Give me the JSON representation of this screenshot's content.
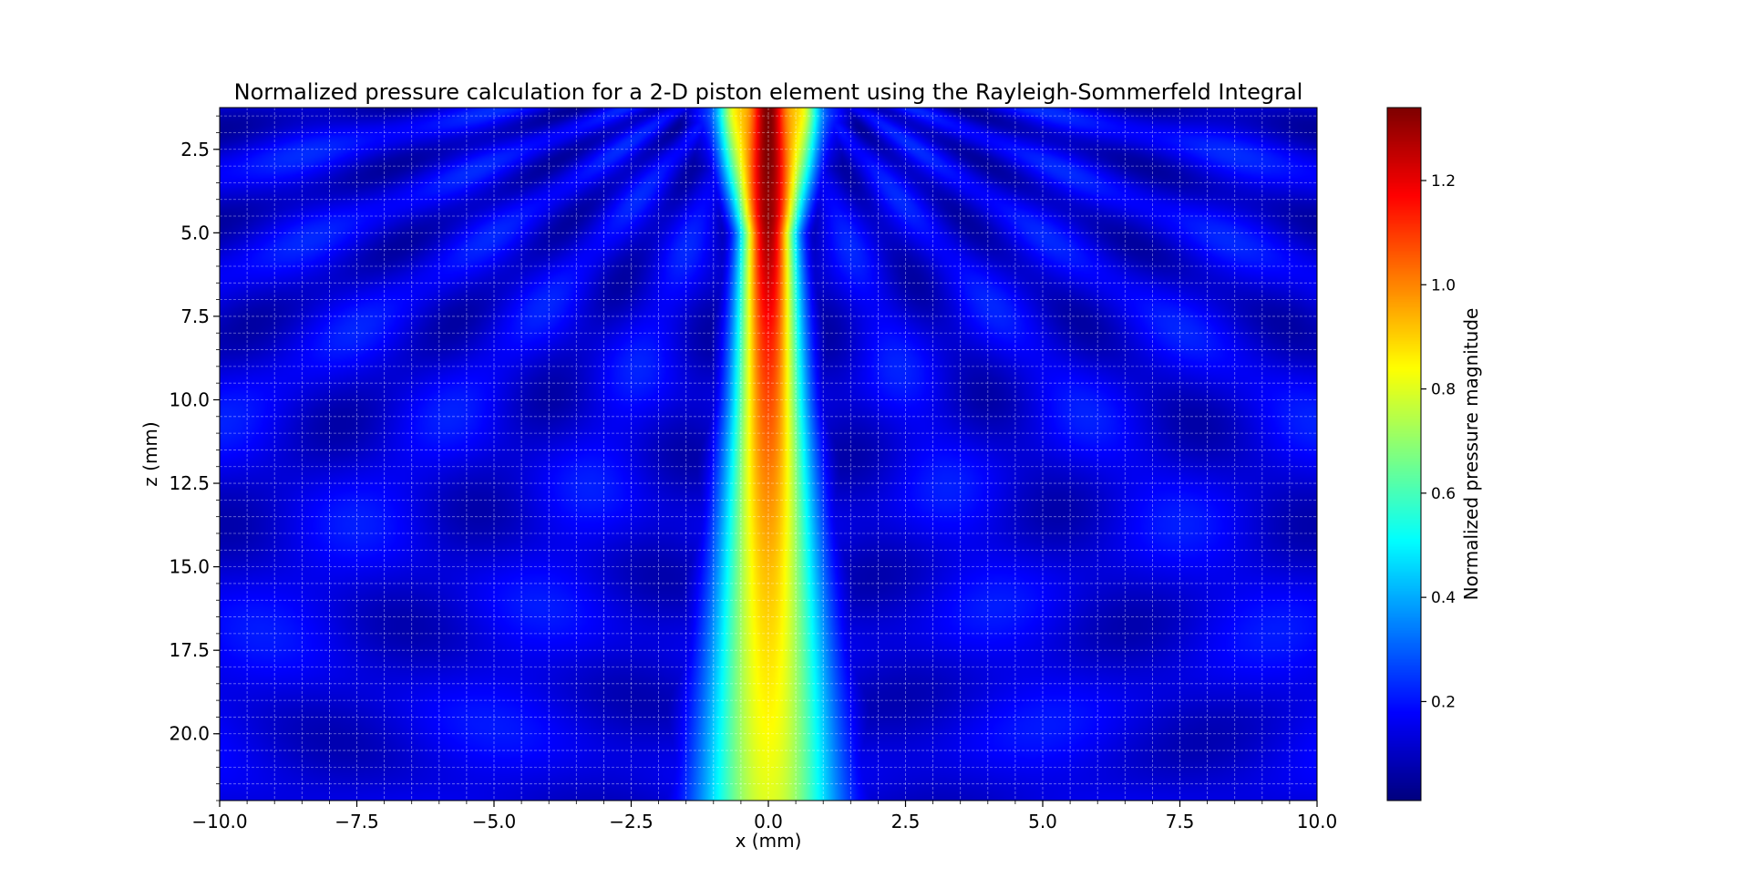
{
  "chart_data": {
    "type": "heatmap",
    "title": "Normalized pressure calculation for a 2-D piston element using the Rayleigh-Sommerfeld Integral",
    "xlabel": "x (mm)",
    "ylabel": "z (mm)",
    "xlim": [
      -10,
      10
    ],
    "ylim": [
      22,
      1.25
    ],
    "y_inverted": true,
    "x_ticks": [
      -10,
      -7.5,
      -5,
      -2.5,
      0,
      2.5,
      5,
      7.5,
      10
    ],
    "x_tick_labels": [
      "−10.0",
      "−7.5",
      "−5.0",
      "−2.5",
      "0.0",
      "2.5",
      "5.0",
      "7.5",
      "10.0"
    ],
    "y_ticks": [
      2.5,
      5,
      7.5,
      10,
      12.5,
      15,
      17.5,
      20
    ],
    "y_tick_labels": [
      "2.5",
      "5.0",
      "7.5",
      "10.0",
      "12.5",
      "15.0",
      "17.5",
      "20.0"
    ],
    "grid": true,
    "colormap": "jet",
    "colorbar": {
      "label": "Normalized pressure magnitude",
      "range": [
        0.01,
        1.34
      ],
      "ticks": [
        0.2,
        0.4,
        0.6,
        0.8,
        1.0,
        1.2
      ],
      "tick_labels": [
        "0.2",
        "0.4",
        "0.6",
        "0.8",
        "1.0",
        "1.2"
      ]
    },
    "field_samples": {
      "description_axis": "pressure along x = 0 by depth z (mm)",
      "z": [
        1.5,
        3.0,
        4.5,
        6.0,
        8.0,
        10.0,
        12.5,
        15.0,
        17.5,
        20.0,
        22.0
      ],
      "pressure": [
        1.25,
        1.3,
        1.32,
        1.25,
        1.15,
        1.08,
        1.0,
        0.93,
        0.88,
        0.84,
        0.8
      ]
    },
    "beam_half_width_mm": {
      "z": [
        1.5,
        5.0,
        10.0,
        15.0,
        22.0
      ],
      "half_width": [
        1.0,
        0.55,
        0.75,
        1.05,
        1.5
      ]
    }
  }
}
